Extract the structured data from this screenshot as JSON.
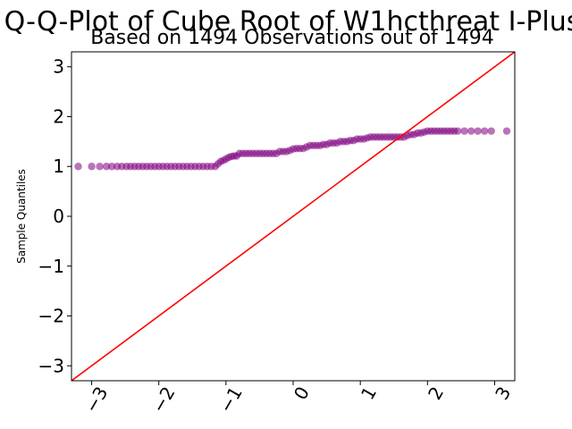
{
  "chart_data": {
    "type": "scatter",
    "title": "Q-Q-Plot of Cube Root of W1hcthreat I-Plus",
    "subtitle": "Based on 1494 Observations out of 1494",
    "xlabel": "",
    "ylabel": "Sample Quantiles",
    "xlim": [
      -3.3,
      3.3
    ],
    "ylim": [
      -3.3,
      3.3
    ],
    "xticks": [
      -3,
      -2,
      -1,
      0,
      1,
      2,
      3
    ],
    "xtick_labels": [
      "−3",
      "−2",
      "−1",
      "0",
      "1",
      "2",
      "3"
    ],
    "yticks": [
      -3,
      -2,
      -1,
      0,
      1,
      2,
      3
    ],
    "ytick_labels": [
      "−3",
      "−2",
      "−1",
      "0",
      "1",
      "2",
      "3"
    ],
    "grid": false,
    "reference_line": {
      "x": [
        -3.3,
        3.3
      ],
      "y": [
        -3.3,
        3.3
      ],
      "color": "#ff0000"
    },
    "series": [
      {
        "marker_color": "#800080",
        "points": [
          [
            -3.2,
            1.0
          ],
          [
            -3.0,
            1.0
          ],
          [
            -2.88,
            1.0
          ],
          [
            -2.78,
            1.0
          ],
          [
            -2.7,
            1.0
          ],
          [
            -2.62,
            1.0
          ],
          [
            -2.55,
            1.0
          ],
          [
            -2.48,
            1.0
          ],
          [
            -2.42,
            1.0
          ],
          [
            -2.36,
            1.0
          ],
          [
            -2.3,
            1.0
          ],
          [
            -2.24,
            1.0
          ],
          [
            -2.18,
            1.0
          ],
          [
            -2.12,
            1.0
          ],
          [
            -2.06,
            1.0
          ],
          [
            -2.0,
            1.0
          ],
          [
            -1.94,
            1.0
          ],
          [
            -1.88,
            1.0
          ],
          [
            -1.82,
            1.0
          ],
          [
            -1.76,
            1.0
          ],
          [
            -1.7,
            1.0
          ],
          [
            -1.64,
            1.0
          ],
          [
            -1.58,
            1.0
          ],
          [
            -1.52,
            1.0
          ],
          [
            -1.46,
            1.0
          ],
          [
            -1.4,
            1.0
          ],
          [
            -1.34,
            1.0
          ],
          [
            -1.28,
            1.0
          ],
          [
            -1.22,
            1.0
          ],
          [
            -1.16,
            1.0
          ],
          [
            -1.12,
            1.05
          ],
          [
            -1.08,
            1.1
          ],
          [
            -1.04,
            1.12
          ],
          [
            -1.0,
            1.15
          ],
          [
            -0.96,
            1.18
          ],
          [
            -0.92,
            1.2
          ],
          [
            -0.88,
            1.21
          ],
          [
            -0.84,
            1.21
          ],
          [
            -0.8,
            1.26
          ],
          [
            -0.75,
            1.26
          ],
          [
            -0.7,
            1.26
          ],
          [
            -0.65,
            1.26
          ],
          [
            -0.6,
            1.26
          ],
          [
            -0.55,
            1.26
          ],
          [
            -0.5,
            1.26
          ],
          [
            -0.45,
            1.26
          ],
          [
            -0.4,
            1.26
          ],
          [
            -0.35,
            1.26
          ],
          [
            -0.3,
            1.26
          ],
          [
            -0.25,
            1.26
          ],
          [
            -0.2,
            1.3
          ],
          [
            -0.15,
            1.3
          ],
          [
            -0.1,
            1.3
          ],
          [
            -0.05,
            1.32
          ],
          [
            0.0,
            1.35
          ],
          [
            0.05,
            1.36
          ],
          [
            0.1,
            1.36
          ],
          [
            0.15,
            1.36
          ],
          [
            0.2,
            1.39
          ],
          [
            0.25,
            1.42
          ],
          [
            0.3,
            1.42
          ],
          [
            0.35,
            1.42
          ],
          [
            0.4,
            1.42
          ],
          [
            0.45,
            1.44
          ],
          [
            0.5,
            1.44
          ],
          [
            0.55,
            1.47
          ],
          [
            0.6,
            1.47
          ],
          [
            0.65,
            1.47
          ],
          [
            0.7,
            1.5
          ],
          [
            0.75,
            1.5
          ],
          [
            0.8,
            1.5
          ],
          [
            0.85,
            1.52
          ],
          [
            0.9,
            1.52
          ],
          [
            0.95,
            1.55
          ],
          [
            1.0,
            1.55
          ],
          [
            1.05,
            1.55
          ],
          [
            1.1,
            1.57
          ],
          [
            1.15,
            1.59
          ],
          [
            1.2,
            1.59
          ],
          [
            1.25,
            1.59
          ],
          [
            1.3,
            1.59
          ],
          [
            1.35,
            1.59
          ],
          [
            1.4,
            1.59
          ],
          [
            1.45,
            1.59
          ],
          [
            1.5,
            1.59
          ],
          [
            1.55,
            1.59
          ],
          [
            1.6,
            1.59
          ],
          [
            1.65,
            1.59
          ],
          [
            1.7,
            1.62
          ],
          [
            1.75,
            1.64
          ],
          [
            1.8,
            1.64
          ],
          [
            1.85,
            1.67
          ],
          [
            1.9,
            1.67
          ],
          [
            1.95,
            1.69
          ],
          [
            2.0,
            1.71
          ],
          [
            2.05,
            1.71
          ],
          [
            2.1,
            1.71
          ],
          [
            2.15,
            1.71
          ],
          [
            2.2,
            1.71
          ],
          [
            2.25,
            1.71
          ],
          [
            2.3,
            1.71
          ],
          [
            2.35,
            1.71
          ],
          [
            2.4,
            1.71
          ],
          [
            2.45,
            1.71
          ],
          [
            2.55,
            1.71
          ],
          [
            2.65,
            1.71
          ],
          [
            2.75,
            1.71
          ],
          [
            2.85,
            1.71
          ],
          [
            2.95,
            1.71
          ],
          [
            3.18,
            1.71
          ]
        ]
      }
    ]
  }
}
